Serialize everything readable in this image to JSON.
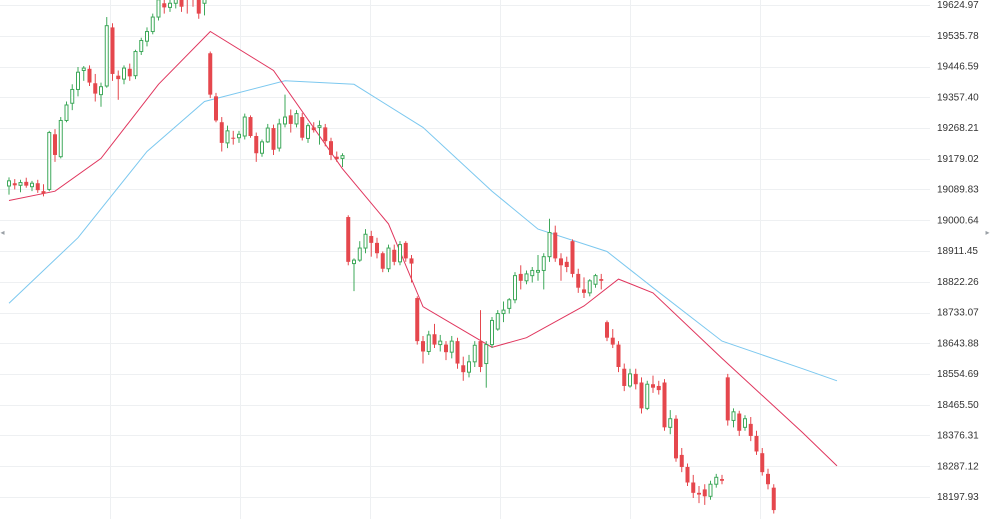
{
  "chart_data": {
    "type": "candlestick",
    "title": "",
    "xlabel": "",
    "ylabel": "",
    "ylim": [
      18150,
      19660
    ],
    "x_tick_labels": [],
    "y_ticks": [
      19624.97,
      19535.78,
      19446.59,
      19357.4,
      19268.21,
      19179.02,
      19089.83,
      19000.64,
      18911.45,
      18822.26,
      18733.07,
      18643.88,
      18554.69,
      18465.5,
      18376.31,
      18287.12,
      18197.93
    ],
    "y_tick_labels": [
      "19624.97",
      "19535.78",
      "19446.59",
      "19357.40",
      "19268.21",
      "19179.02",
      "19089.83",
      "19000.64",
      "18911.45",
      "18822.26",
      "18733.07",
      "18643.88",
      "18554.69",
      "18465.50",
      "18376.31",
      "18287.12",
      "18197.93"
    ],
    "grid": true,
    "colors": {
      "up": "#3ea85a",
      "down": "#e5474d",
      "ma_short": "#e0365e",
      "ma_long": "#7cc8ef",
      "grid": "#eef0f2"
    },
    "candles": [
      [
        19100,
        19125,
        19075,
        19115
      ],
      [
        19108,
        19120,
        19090,
        19102
      ],
      [
        19102,
        19118,
        19082,
        19110
      ],
      [
        19112,
        19124,
        19095,
        19101
      ],
      [
        19098,
        19115,
        19085,
        19108
      ],
      [
        19108,
        19118,
        19080,
        19088
      ],
      [
        19085,
        19105,
        19070,
        19078
      ],
      [
        19090,
        19260,
        19085,
        19255
      ],
      [
        19250,
        19265,
        19170,
        19190
      ],
      [
        19185,
        19300,
        19180,
        19290
      ],
      [
        19290,
        19345,
        19285,
        19335
      ],
      [
        19340,
        19395,
        19320,
        19380
      ],
      [
        19380,
        19445,
        19360,
        19430
      ],
      [
        19435,
        19448,
        19405,
        19442
      ],
      [
        19440,
        19450,
        19390,
        19400
      ],
      [
        19398,
        19425,
        19345,
        19368
      ],
      [
        19365,
        19400,
        19330,
        19388
      ],
      [
        19390,
        19590,
        19385,
        19565
      ],
      [
        19560,
        19572,
        19405,
        19425
      ],
      [
        19420,
        19435,
        19350,
        19410
      ],
      [
        19410,
        19450,
        19395,
        19442
      ],
      [
        19440,
        19455,
        19405,
        19418
      ],
      [
        19420,
        19495,
        19410,
        19490
      ],
      [
        19490,
        19530,
        19480,
        19522
      ],
      [
        19520,
        19560,
        19505,
        19548
      ],
      [
        19548,
        19600,
        19540,
        19590
      ],
      [
        19590,
        19650,
        19580,
        19640
      ],
      [
        19630,
        19645,
        19600,
        19618
      ],
      [
        19618,
        19648,
        19605,
        19630
      ],
      [
        19630,
        19660,
        19615,
        19648
      ],
      [
        19645,
        19660,
        19605,
        19620
      ],
      [
        19650,
        19660,
        19600,
        19640
      ],
      [
        19655,
        19660,
        19620,
        19648
      ],
      [
        19645,
        19660,
        19585,
        19600
      ],
      [
        19630,
        19658,
        19595,
        19650
      ],
      [
        19485,
        19490,
        19355,
        19365
      ],
      [
        19360,
        19370,
        19285,
        19290
      ],
      [
        19285,
        19300,
        19200,
        19225
      ],
      [
        19225,
        19275,
        19210,
        19260
      ],
      [
        19240,
        19260,
        19220,
        19238
      ],
      [
        19240,
        19260,
        19225,
        19250
      ],
      [
        19245,
        19310,
        19235,
        19300
      ],
      [
        19300,
        19305,
        19240,
        19245
      ],
      [
        19245,
        19255,
        19170,
        19195
      ],
      [
        19195,
        19235,
        19185,
        19228
      ],
      [
        19228,
        19280,
        19225,
        19268
      ],
      [
        19268,
        19278,
        19190,
        19205
      ],
      [
        19210,
        19295,
        19200,
        19280
      ],
      [
        19280,
        19365,
        19270,
        19300
      ],
      [
        19305,
        19322,
        19255,
        19280
      ],
      [
        19280,
        19320,
        19270,
        19310
      ],
      [
        19300,
        19312,
        19232,
        19240
      ],
      [
        19238,
        19282,
        19225,
        19275
      ],
      [
        19270,
        19285,
        19255,
        19262
      ],
      [
        19270,
        19290,
        19220,
        19275
      ],
      [
        19270,
        19280,
        19215,
        19230
      ],
      [
        19230,
        19240,
        19175,
        19190
      ],
      [
        19185,
        19200,
        19170,
        19178
      ],
      [
        19180,
        19195,
        19155,
        19188
      ],
      [
        19010,
        19015,
        18870,
        18880
      ],
      [
        18875,
        18890,
        18795,
        18885
      ],
      [
        18885,
        18940,
        18880,
        18920
      ],
      [
        18920,
        18975,
        18905,
        18960
      ],
      [
        18955,
        18970,
        18895,
        18935
      ],
      [
        18935,
        18950,
        18890,
        18905
      ],
      [
        18905,
        18910,
        18850,
        18860
      ],
      [
        18860,
        18930,
        18850,
        18920
      ],
      [
        18915,
        18930,
        18870,
        18880
      ],
      [
        18880,
        18940,
        18870,
        18930
      ],
      [
        18935,
        18940,
        18880,
        18890
      ],
      [
        18890,
        18900,
        18820,
        18875
      ],
      [
        18775,
        18780,
        18640,
        18650
      ],
      [
        18650,
        18665,
        18585,
        18620
      ],
      [
        18620,
        18680,
        18610,
        18668
      ],
      [
        18670,
        18700,
        18630,
        18640
      ],
      [
        18640,
        18668,
        18620,
        18650
      ],
      [
        18640,
        18650,
        18595,
        18618
      ],
      [
        18618,
        18665,
        18600,
        18650
      ],
      [
        18650,
        18660,
        18570,
        18585
      ],
      [
        18580,
        18605,
        18535,
        18560
      ],
      [
        18560,
        18610,
        18545,
        18590
      ],
      [
        18590,
        18650,
        18575,
        18638
      ],
      [
        18650,
        18740,
        18560,
        18575
      ],
      [
        18585,
        18650,
        18515,
        18640
      ],
      [
        18640,
        18720,
        18630,
        18710
      ],
      [
        18685,
        18740,
        18680,
        18730
      ],
      [
        18730,
        18765,
        18705,
        18740
      ],
      [
        18745,
        18775,
        18730,
        18770
      ],
      [
        18770,
        18850,
        18760,
        18840
      ],
      [
        18845,
        18870,
        18800,
        18825
      ],
      [
        18825,
        18855,
        18815,
        18845
      ],
      [
        18840,
        18865,
        18820,
        18855
      ],
      [
        18850,
        18900,
        18825,
        18855
      ],
      [
        18855,
        18905,
        18800,
        18895
      ],
      [
        18895,
        19005,
        18880,
        18965
      ],
      [
        18965,
        18985,
        18880,
        18890
      ],
      [
        18890,
        18905,
        18825,
        18870
      ],
      [
        18880,
        18895,
        18850,
        18865
      ],
      [
        18940,
        18945,
        18835,
        18845
      ],
      [
        18845,
        18860,
        18790,
        18805
      ],
      [
        18800,
        18835,
        18775,
        18790
      ],
      [
        18790,
        18830,
        18780,
        18825
      ],
      [
        18815,
        18845,
        18805,
        18840
      ],
      [
        18830,
        18845,
        18800,
        18825
      ],
      [
        18705,
        18710,
        18650,
        18660
      ],
      [
        18660,
        18685,
        18630,
        18640
      ],
      [
        18640,
        18650,
        18560,
        18575
      ],
      [
        18570,
        18585,
        18505,
        18520
      ],
      [
        18520,
        18570,
        18515,
        18555
      ],
      [
        18555,
        18570,
        18510,
        18525
      ],
      [
        18530,
        18545,
        18440,
        18455
      ],
      [
        18455,
        18535,
        18450,
        18525
      ],
      [
        18525,
        18550,
        18500,
        18515
      ],
      [
        18520,
        18535,
        18495,
        18508
      ],
      [
        18530,
        18540,
        18390,
        18400
      ],
      [
        18400,
        18450,
        18380,
        18425
      ],
      [
        18425,
        18435,
        18300,
        18310
      ],
      [
        18320,
        18340,
        18270,
        18285
      ],
      [
        18285,
        18295,
        18230,
        18240
      ],
      [
        18240,
        18262,
        18195,
        18210
      ],
      [
        18210,
        18230,
        18180,
        18205
      ],
      [
        18220,
        18235,
        18175,
        18200
      ],
      [
        18200,
        18245,
        18190,
        18235
      ],
      [
        18235,
        18265,
        18225,
        18255
      ],
      [
        18250,
        18262,
        18235,
        18245
      ],
      [
        18545,
        18555,
        18405,
        18420
      ],
      [
        18420,
        18455,
        18400,
        18445
      ],
      [
        18440,
        18448,
        18375,
        18390
      ],
      [
        18400,
        18435,
        18390,
        18425
      ],
      [
        18410,
        18430,
        18360,
        18375
      ],
      [
        18375,
        18390,
        18320,
        18330
      ],
      [
        18325,
        18340,
        18260,
        18270
      ],
      [
        18265,
        18280,
        18220,
        18235
      ],
      [
        18225,
        18235,
        18150,
        18160
      ]
    ],
    "ma_short": [
      [
        0,
        19058
      ],
      [
        8,
        19085
      ],
      [
        16,
        19180
      ],
      [
        26,
        19395
      ],
      [
        35,
        19548
      ],
      [
        46,
        19435
      ],
      [
        58,
        19150
      ],
      [
        66,
        18990
      ],
      [
        72,
        18750
      ],
      [
        84,
        18632
      ],
      [
        90,
        18660
      ],
      [
        100,
        18752
      ],
      [
        106,
        18830
      ],
      [
        112,
        18790
      ],
      [
        124,
        18600
      ],
      [
        138,
        18385
      ],
      [
        144,
        18288
      ]
    ],
    "ma_long": [
      [
        0,
        18760
      ],
      [
        12,
        18950
      ],
      [
        24,
        19200
      ],
      [
        34,
        19345
      ],
      [
        48,
        19405
      ],
      [
        60,
        19395
      ],
      [
        72,
        19270
      ],
      [
        84,
        19085
      ],
      [
        92,
        18975
      ],
      [
        104,
        18910
      ],
      [
        112,
        18805
      ],
      [
        124,
        18650
      ],
      [
        138,
        18570
      ],
      [
        144,
        18535
      ]
    ]
  }
}
